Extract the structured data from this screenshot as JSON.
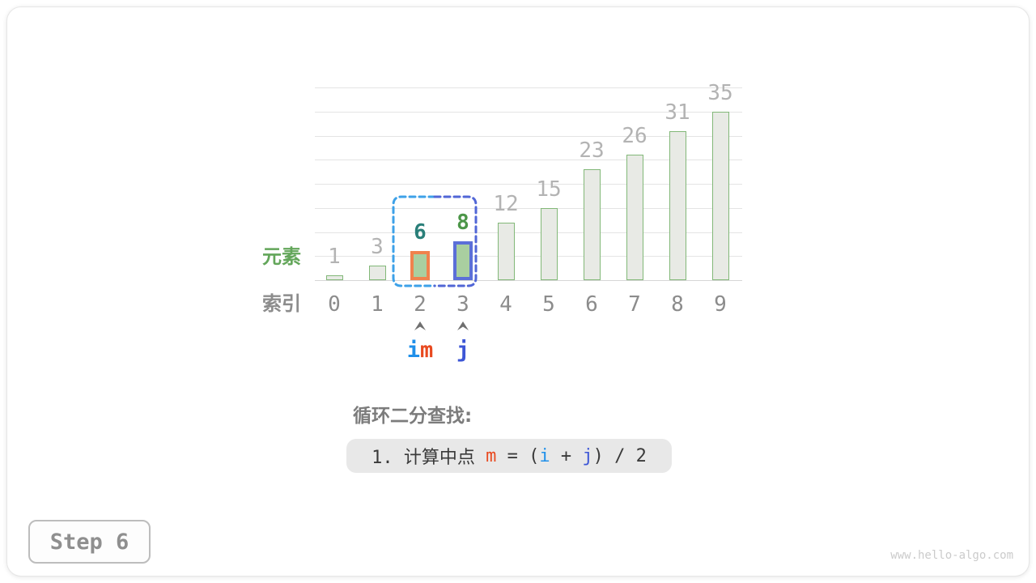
{
  "chart_data": {
    "type": "bar",
    "categories": [
      "0",
      "1",
      "2",
      "3",
      "4",
      "5",
      "6",
      "7",
      "8",
      "9"
    ],
    "values": [
      1,
      3,
      6,
      8,
      12,
      15,
      23,
      26,
      31,
      35
    ],
    "title": "",
    "xlabel": "索引",
    "ylabel": "元素",
    "ylim": [
      0,
      40
    ],
    "gridline_step": 5,
    "grid": true,
    "row_labels": {
      "elements": "元素",
      "indices": "索引"
    },
    "bar_colors": {
      "fill": "#e8eae5",
      "border": "#82b878",
      "highlight_fill": "#a9cfa0"
    },
    "grid_color": "#e4e4e4",
    "value_label_color": "#b3b3b3",
    "index_label_color": "#8c8c8c",
    "highlighted_bars": [
      {
        "index": 2,
        "value": 6,
        "border_color": "#f0824d",
        "label_color": "#2a7f79"
      },
      {
        "index": 3,
        "value": 8,
        "border_color": "#5b6fd8",
        "label_color": "#4c9648"
      }
    ],
    "search_range": {
      "from_index": 2,
      "to_index": 3,
      "left_color": "#3da1e8",
      "right_color": "#5166d6"
    },
    "pointers": [
      {
        "index": 2,
        "segments": [
          {
            "text": "i",
            "color": "#2090ea"
          },
          {
            "text": "m",
            "color": "#e8491f"
          }
        ]
      },
      {
        "index": 3,
        "segments": [
          {
            "text": "j",
            "color": "#3d56d6"
          }
        ]
      }
    ],
    "caret_color": "#6f6f6f"
  },
  "annotation": {
    "title": "循环二分查找:",
    "formula_segments": [
      {
        "text": "1. 计算中点 ",
        "color": "#3a3a3a"
      },
      {
        "text": "m",
        "color": "#e8491f"
      },
      {
        "text": " = (",
        "color": "#3a3a3a"
      },
      {
        "text": "i",
        "color": "#2090ea"
      },
      {
        "text": " + ",
        "color": "#3a3a3a"
      },
      {
        "text": "j",
        "color": "#3d56d6"
      },
      {
        "text": ") / 2",
        "color": "#3a3a3a"
      }
    ]
  },
  "step_badge": {
    "label": "Step 6"
  },
  "watermark": {
    "text": "www.hello-algo.com"
  }
}
